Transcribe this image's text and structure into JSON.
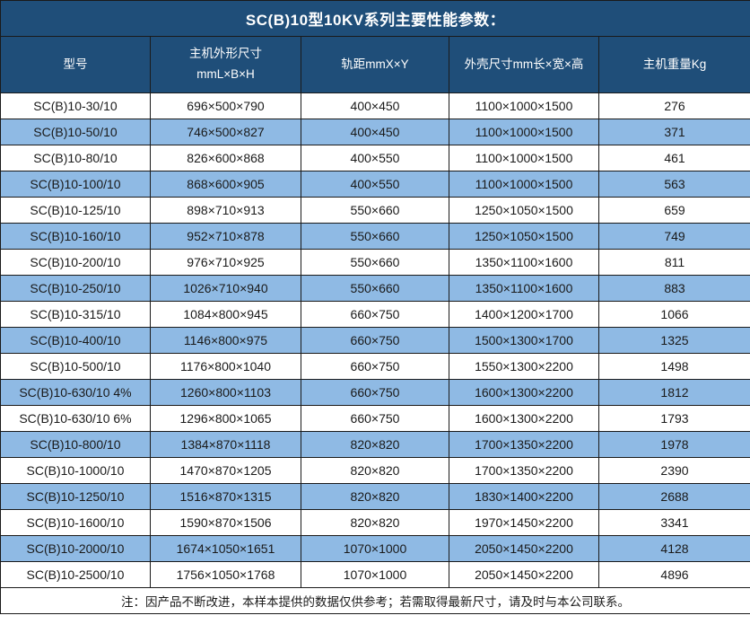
{
  "page": {
    "title": "SC(B)10型10KV系列主要性能参数：",
    "note": "注：因产品不断改进，本样本提供的数据仅供参考；若需取得最新尺寸，请及时与本公司联系。"
  },
  "colors": {
    "title_header_bg": "#1F4E79",
    "title_header_text": "#FFFFFF",
    "row_bg": "#FFFFFF",
    "row_alt_bg": "#8FBAE4",
    "border": "#1A1A1A",
    "body_text": "#1A1A1A"
  },
  "table": {
    "columns": [
      {
        "id": "model",
        "label_lines": [
          "型号"
        ]
      },
      {
        "id": "main-unit-dimensions",
        "label_lines": [
          "主机外形尺寸",
          "mmL×B×H"
        ]
      },
      {
        "id": "track-gauge",
        "label_lines": [
          "轨距mmX×Y"
        ]
      },
      {
        "id": "shell-dimensions",
        "label_lines": [
          "外壳尺寸mm长×宽×高"
        ]
      },
      {
        "id": "main-unit-weight",
        "label_lines": [
          "主机重量Kg"
        ]
      }
    ],
    "rows": [
      [
        "SC(B)10-30/10",
        "696×500×790",
        "400×450",
        "1100×1000×1500",
        "276"
      ],
      [
        "SC(B)10-50/10",
        "746×500×827",
        "400×450",
        "1100×1000×1500",
        "371"
      ],
      [
        "SC(B)10-80/10",
        "826×600×868",
        "400×550",
        "1100×1000×1500",
        "461"
      ],
      [
        "SC(B)10-100/10",
        "868×600×905",
        "400×550",
        "1100×1000×1500",
        "563"
      ],
      [
        "SC(B)10-125/10",
        "898×710×913",
        "550×660",
        "1250×1050×1500",
        "659"
      ],
      [
        "SC(B)10-160/10",
        "952×710×878",
        "550×660",
        "1250×1050×1500",
        "749"
      ],
      [
        "SC(B)10-200/10",
        "976×710×925",
        "550×660",
        "1350×1100×1600",
        "811"
      ],
      [
        "SC(B)10-250/10",
        "1026×710×940",
        "550×660",
        "1350×1100×1600",
        "883"
      ],
      [
        "SC(B)10-315/10",
        "1084×800×945",
        "660×750",
        "1400×1200×1700",
        "1066"
      ],
      [
        "SC(B)10-400/10",
        "1146×800×975",
        "660×750",
        "1500×1300×1700",
        "1325"
      ],
      [
        "SC(B)10-500/10",
        "1176×800×1040",
        "660×750",
        "1550×1300×2200",
        "1498"
      ],
      [
        "SC(B)10-630/10 4%",
        "1260×800×1103",
        "660×750",
        "1600×1300×2200",
        "1812"
      ],
      [
        "SC(B)10-630/10 6%",
        "1296×800×1065",
        "660×750",
        "1600×1300×2200",
        "1793"
      ],
      [
        "SC(B)10-800/10",
        "1384×870×1118",
        "820×820",
        "1700×1350×2200",
        "1978"
      ],
      [
        "SC(B)10-1000/10",
        "1470×870×1205",
        "820×820",
        "1700×1350×2200",
        "2390"
      ],
      [
        "SC(B)10-1250/10",
        "1516×870×1315",
        "820×820",
        "1830×1400×2200",
        "2688"
      ],
      [
        "SC(B)10-1600/10",
        "1590×870×1506",
        "820×820",
        "1970×1450×2200",
        "3341"
      ],
      [
        "SC(B)10-2000/10",
        "1674×1050×1651",
        "1070×1000",
        "2050×1450×2200",
        "4128"
      ],
      [
        "SC(B)10-2500/10",
        "1756×1050×1768",
        "1070×1000",
        "2050×1450×2200",
        "4896"
      ]
    ]
  }
}
